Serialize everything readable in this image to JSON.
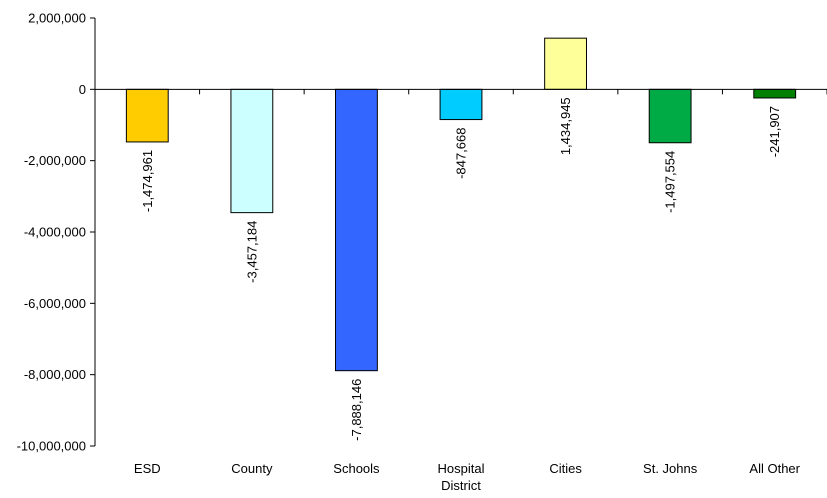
{
  "chart_data": {
    "type": "bar",
    "title": "",
    "xlabel": "",
    "ylabel": "",
    "categories": [
      "ESD",
      "County",
      "Schools",
      "Hospital District",
      "Cities",
      "St. Johns",
      "All Other"
    ],
    "category_lines": [
      [
        "ESD"
      ],
      [
        "County"
      ],
      [
        "Schools"
      ],
      [
        "Hospital",
        "District"
      ],
      [
        "Cities"
      ],
      [
        "St. Johns"
      ],
      [
        "All Other"
      ]
    ],
    "values": [
      -1474961,
      -3457184,
      -7888146,
      -847668,
      1434945,
      -1497554,
      -241907
    ],
    "value_labels": [
      "-1,474,961",
      "-3,457,184",
      "-7,888,146",
      "-847,668",
      "1,434,945",
      "-1,497,554",
      "-241,907"
    ],
    "colors": [
      "#FFCC00",
      "#CCFFFF",
      "#3366FF",
      "#00CCFF",
      "#FFFF99",
      "#00AA44",
      "#008000"
    ],
    "ylim": [
      -10000000,
      2000000
    ],
    "yticks": [
      2000000,
      0,
      -2000000,
      -4000000,
      -6000000,
      -8000000,
      -10000000
    ],
    "ytick_labels": [
      "2,000,000",
      "0",
      "-2,000,000",
      "-4,000,000",
      "-6,000,000",
      "-8,000,000",
      "-10,000,000"
    ],
    "grid": false,
    "legend": "none"
  }
}
